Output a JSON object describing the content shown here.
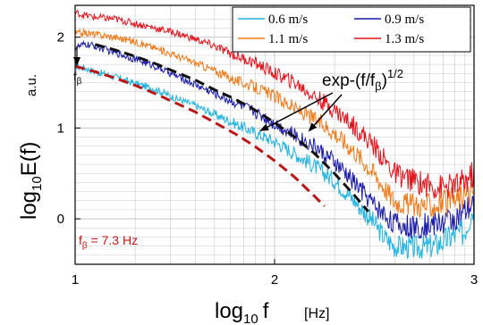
{
  "chart_data": {
    "type": "line",
    "title": "",
    "xlabel": "log",
    "xlabel_sub": "10",
    "xlabel_var": "f",
    "xunit": "[Hz]",
    "ylabel": "log",
    "ylabel_sub": "10",
    "ylabel_var": "E(f)",
    "yunit": "a.u.",
    "xlim": [
      1.0,
      3.0
    ],
    "ylim": [
      -0.5,
      2.35
    ],
    "xticks": [
      {
        "value": 1,
        "label": "1"
      },
      {
        "value": 2,
        "label": "2"
      },
      {
        "value": 3,
        "label": "3"
      }
    ],
    "yticks": [
      {
        "value": 0,
        "label": "0"
      },
      {
        "value": 1,
        "label": "1"
      },
      {
        "value": 2,
        "label": "2"
      }
    ],
    "grid": true,
    "legend_position": "top-right",
    "series": [
      {
        "name": "0.6 m/s",
        "color": "#1fb3e0",
        "x": [
          1.0,
          1.05,
          1.1,
          1.2,
          1.3,
          1.4,
          1.5,
          1.6,
          1.7,
          1.8,
          1.9,
          2.0,
          2.1,
          2.2,
          2.3,
          2.4,
          2.5,
          2.55,
          2.6,
          2.7,
          2.8,
          2.9,
          2.95,
          3.0
        ],
        "y": [
          1.68,
          1.66,
          1.62,
          1.56,
          1.49,
          1.43,
          1.33,
          1.25,
          1.15,
          1.05,
          0.95,
          0.85,
          0.72,
          0.58,
          0.42,
          0.2,
          -0.05,
          -0.2,
          -0.3,
          -0.32,
          -0.3,
          -0.18,
          -0.15,
          0.15
        ]
      },
      {
        "name": "0.9 m/s",
        "color": "#1a1aa8",
        "x": [
          1.0,
          1.05,
          1.1,
          1.2,
          1.3,
          1.4,
          1.5,
          1.6,
          1.7,
          1.8,
          1.9,
          2.0,
          2.1,
          2.2,
          2.3,
          2.4,
          2.5,
          2.55,
          2.6,
          2.7,
          2.8,
          2.9,
          2.95,
          3.0
        ],
        "y": [
          1.88,
          1.92,
          1.9,
          1.83,
          1.76,
          1.68,
          1.58,
          1.48,
          1.38,
          1.28,
          1.18,
          1.05,
          0.92,
          0.8,
          0.62,
          0.4,
          0.15,
          0.05,
          -0.05,
          -0.1,
          -0.05,
          0.0,
          0.05,
          0.15
        ]
      },
      {
        "name": "1.1 m/s",
        "color": "#f07a18",
        "x": [
          1.0,
          1.05,
          1.1,
          1.2,
          1.3,
          1.4,
          1.5,
          1.6,
          1.7,
          1.8,
          1.9,
          2.0,
          2.1,
          2.2,
          2.3,
          2.4,
          2.5,
          2.55,
          2.6,
          2.7,
          2.8,
          2.9,
          2.95,
          3.0
        ],
        "y": [
          2.04,
          2.05,
          2.03,
          2.0,
          1.95,
          1.88,
          1.8,
          1.72,
          1.63,
          1.53,
          1.45,
          1.35,
          1.22,
          1.1,
          0.95,
          0.75,
          0.5,
          0.35,
          0.2,
          0.15,
          0.15,
          0.2,
          0.25,
          0.3
        ]
      },
      {
        "name": "1.3 m/s",
        "color": "#e3121b",
        "x": [
          1.0,
          1.05,
          1.1,
          1.2,
          1.3,
          1.4,
          1.5,
          1.6,
          1.7,
          1.8,
          1.9,
          2.0,
          2.1,
          2.2,
          2.3,
          2.4,
          2.5,
          2.55,
          2.6,
          2.7,
          2.8,
          2.9,
          2.95,
          3.0
        ],
        "y": [
          2.27,
          2.24,
          2.22,
          2.2,
          2.15,
          2.1,
          2.05,
          1.98,
          1.9,
          1.8,
          1.72,
          1.6,
          1.5,
          1.35,
          1.2,
          1.02,
          0.8,
          0.65,
          0.5,
          0.42,
          0.35,
          0.35,
          0.4,
          0.5
        ]
      }
    ],
    "fits": [
      {
        "color": "#111111",
        "x": [
          1.1,
          1.2,
          1.3,
          1.4,
          1.5,
          1.6,
          1.7,
          1.8,
          1.9,
          2.0,
          2.1,
          2.2,
          2.3,
          2.4,
          2.47
        ],
        "y": [
          1.92,
          1.86,
          1.79,
          1.71,
          1.62,
          1.53,
          1.42,
          1.32,
          1.2,
          1.06,
          0.9,
          0.72,
          0.5,
          0.26,
          0.08
        ]
      },
      {
        "color": "#b81818",
        "x": [
          1.0,
          1.1,
          1.2,
          1.3,
          1.4,
          1.5,
          1.6,
          1.7,
          1.8,
          1.9,
          2.0,
          2.1,
          2.2,
          2.25
        ],
        "y": [
          1.68,
          1.62,
          1.55,
          1.47,
          1.38,
          1.28,
          1.18,
          1.06,
          0.94,
          0.8,
          0.64,
          0.46,
          0.25,
          0.14
        ]
      }
    ],
    "annotations": {
      "fit_label": "exp-(f/f",
      "fit_label_sub": "β",
      "fit_label_close": ")",
      "fit_label_sup": "1/2",
      "fbeta_marker": "f",
      "fbeta_marker_sub": "β",
      "fbeta_value_prefix": "f",
      "fbeta_value_sub": "β",
      "fbeta_value_suffix": " = 7.3 Hz"
    },
    "colors": {
      "fbeta_text": "#c01818",
      "grid": "#c8c8c8",
      "axis": "#000000"
    }
  }
}
